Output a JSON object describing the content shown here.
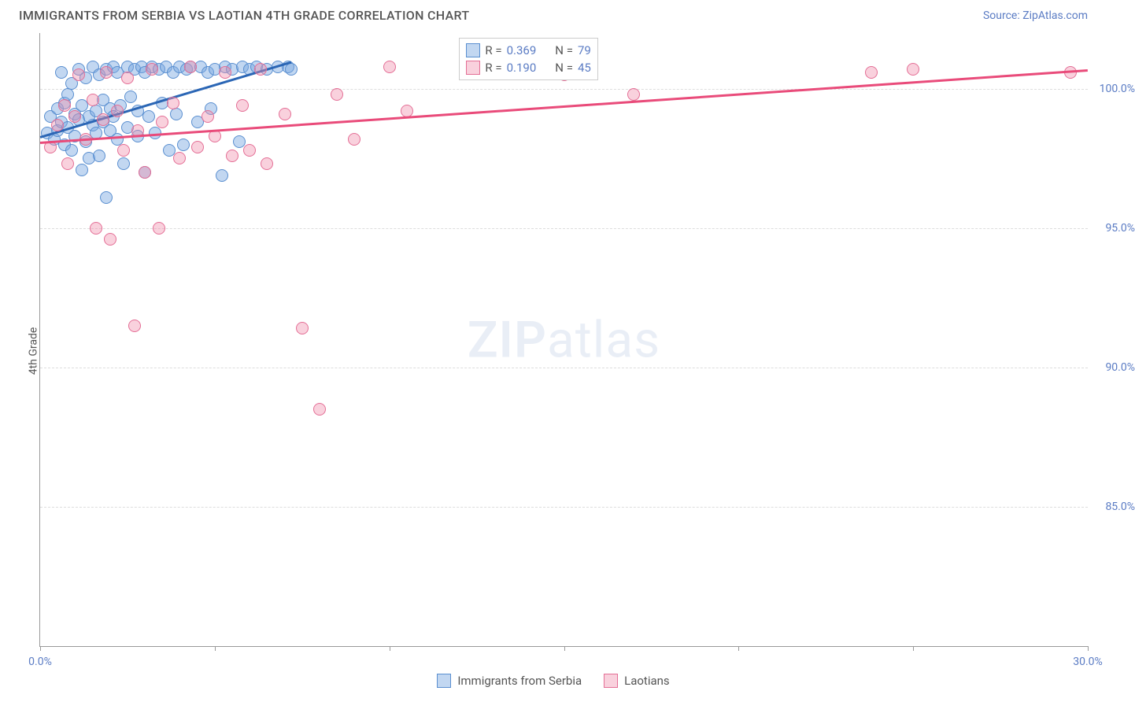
{
  "header": {
    "title": "IMMIGRANTS FROM SERBIA VS LAOTIAN 4TH GRADE CORRELATION CHART",
    "source_prefix": "Source: ",
    "source": "ZipAtlas.com"
  },
  "chart": {
    "type": "scatter",
    "ylabel": "4th Grade",
    "xlim": [
      0,
      30
    ],
    "ylim": [
      80,
      102
    ],
    "xtick_positions": [
      0,
      5,
      10,
      15,
      20,
      25,
      30
    ],
    "xtick_labels_shown": {
      "0": "0.0%",
      "30": "30.0%"
    },
    "ytick_positions": [
      85,
      90,
      95,
      100
    ],
    "ytick_labels": {
      "85": "85.0%",
      "90": "90.0%",
      "95": "95.0%",
      "100": "100.0%"
    },
    "background_color": "#ffffff",
    "grid_color": "#dddddd",
    "axis_color": "#999999",
    "tick_label_color": "#5b7cc4",
    "series": [
      {
        "name": "Immigrants from Serbia",
        "marker_fill": "rgba(119,167,223,0.45)",
        "marker_stroke": "#5a8fd0",
        "trend_color": "#2b66b5",
        "R": "0.369",
        "N": "79",
        "trend": {
          "x0": 0,
          "y0": 98.3,
          "x1": 7.2,
          "y1": 101.0
        },
        "points": [
          [
            0.2,
            98.4
          ],
          [
            0.3,
            99.0
          ],
          [
            0.4,
            98.2
          ],
          [
            0.5,
            99.3
          ],
          [
            0.5,
            98.5
          ],
          [
            0.6,
            100.6
          ],
          [
            0.6,
            98.8
          ],
          [
            0.7,
            99.5
          ],
          [
            0.7,
            98.0
          ],
          [
            0.8,
            99.8
          ],
          [
            0.8,
            98.6
          ],
          [
            0.9,
            100.2
          ],
          [
            0.9,
            97.8
          ],
          [
            1.0,
            99.1
          ],
          [
            1.0,
            98.3
          ],
          [
            1.1,
            100.7
          ],
          [
            1.1,
            98.9
          ],
          [
            1.2,
            97.1
          ],
          [
            1.2,
            99.4
          ],
          [
            1.3,
            98.1
          ],
          [
            1.3,
            100.4
          ],
          [
            1.4,
            99.0
          ],
          [
            1.4,
            97.5
          ],
          [
            1.5,
            98.7
          ],
          [
            1.5,
            100.8
          ],
          [
            1.6,
            99.2
          ],
          [
            1.6,
            98.4
          ],
          [
            1.7,
            100.5
          ],
          [
            1.7,
            97.6
          ],
          [
            1.8,
            99.6
          ],
          [
            1.8,
            98.8
          ],
          [
            1.9,
            100.7
          ],
          [
            1.9,
            96.1
          ],
          [
            2.0,
            99.3
          ],
          [
            2.0,
            98.5
          ],
          [
            2.1,
            100.8
          ],
          [
            2.1,
            99.0
          ],
          [
            2.2,
            98.2
          ],
          [
            2.2,
            100.6
          ],
          [
            2.3,
            99.4
          ],
          [
            2.4,
            97.3
          ],
          [
            2.5,
            100.8
          ],
          [
            2.5,
            98.6
          ],
          [
            2.6,
            99.7
          ],
          [
            2.7,
            100.7
          ],
          [
            2.8,
            98.3
          ],
          [
            2.8,
            99.2
          ],
          [
            2.9,
            100.8
          ],
          [
            3.0,
            100.6
          ],
          [
            3.0,
            97.0
          ],
          [
            3.1,
            99.0
          ],
          [
            3.2,
            100.8
          ],
          [
            3.3,
            98.4
          ],
          [
            3.4,
            100.7
          ],
          [
            3.5,
            99.5
          ],
          [
            3.6,
            100.8
          ],
          [
            3.7,
            97.8
          ],
          [
            3.8,
            100.6
          ],
          [
            3.9,
            99.1
          ],
          [
            4.0,
            100.8
          ],
          [
            4.1,
            98.0
          ],
          [
            4.2,
            100.7
          ],
          [
            4.3,
            100.8
          ],
          [
            4.5,
            98.8
          ],
          [
            4.6,
            100.8
          ],
          [
            4.8,
            100.6
          ],
          [
            4.9,
            99.3
          ],
          [
            5.0,
            100.7
          ],
          [
            5.2,
            96.9
          ],
          [
            5.3,
            100.8
          ],
          [
            5.5,
            100.7
          ],
          [
            5.7,
            98.1
          ],
          [
            5.8,
            100.8
          ],
          [
            6.0,
            100.7
          ],
          [
            6.2,
            100.8
          ],
          [
            6.5,
            100.7
          ],
          [
            6.8,
            100.8
          ],
          [
            7.1,
            100.8
          ],
          [
            7.2,
            100.7
          ]
        ]
      },
      {
        "name": "Laotians",
        "marker_fill": "rgba(240,140,170,0.40)",
        "marker_stroke": "#e46f96",
        "trend_color": "#e94b7a",
        "R": "0.190",
        "N": "45",
        "trend": {
          "x0": 0,
          "y0": 98.1,
          "x1": 30,
          "y1": 100.7
        },
        "points": [
          [
            0.3,
            97.9
          ],
          [
            0.5,
            98.7
          ],
          [
            0.7,
            99.4
          ],
          [
            0.8,
            97.3
          ],
          [
            1.0,
            99.0
          ],
          [
            1.1,
            100.5
          ],
          [
            1.3,
            98.2
          ],
          [
            1.5,
            99.6
          ],
          [
            1.6,
            95.0
          ],
          [
            1.8,
            98.9
          ],
          [
            1.9,
            100.6
          ],
          [
            2.0,
            94.6
          ],
          [
            2.2,
            99.2
          ],
          [
            2.4,
            97.8
          ],
          [
            2.5,
            100.4
          ],
          [
            2.7,
            91.5
          ],
          [
            2.8,
            98.5
          ],
          [
            3.0,
            97.0
          ],
          [
            3.2,
            100.7
          ],
          [
            3.4,
            95.0
          ],
          [
            3.5,
            98.8
          ],
          [
            3.8,
            99.5
          ],
          [
            4.0,
            97.5
          ],
          [
            4.3,
            100.8
          ],
          [
            4.5,
            97.9
          ],
          [
            4.8,
            99.0
          ],
          [
            5.0,
            98.3
          ],
          [
            5.3,
            100.6
          ],
          [
            5.5,
            97.6
          ],
          [
            5.8,
            99.4
          ],
          [
            6.0,
            97.8
          ],
          [
            6.3,
            100.7
          ],
          [
            6.5,
            97.3
          ],
          [
            7.0,
            99.1
          ],
          [
            7.5,
            91.4
          ],
          [
            8.0,
            88.5
          ],
          [
            8.5,
            99.8
          ],
          [
            9.0,
            98.2
          ],
          [
            10.0,
            100.8
          ],
          [
            10.5,
            99.2
          ],
          [
            15.0,
            100.5
          ],
          [
            17.0,
            99.8
          ],
          [
            23.8,
            100.6
          ],
          [
            25.0,
            100.7
          ],
          [
            29.5,
            100.6
          ]
        ]
      }
    ],
    "stats_box": {
      "labels": {
        "R": "R =",
        "N": "N ="
      }
    },
    "watermark": {
      "zip": "ZIP",
      "atlas": "atlas"
    },
    "legend": {
      "items": [
        {
          "label": "Immigrants from Serbia",
          "swatch_fill": "rgba(119,167,223,0.45)",
          "swatch_stroke": "#5a8fd0"
        },
        {
          "label": "Laotians",
          "swatch_fill": "rgba(240,140,170,0.40)",
          "swatch_stroke": "#e46f96"
        }
      ]
    }
  }
}
